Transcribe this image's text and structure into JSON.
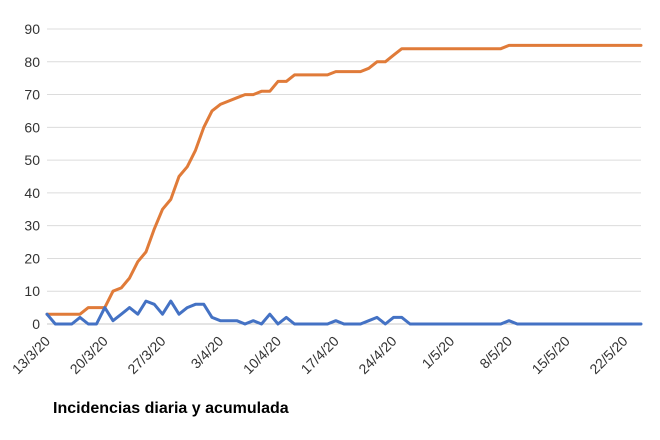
{
  "caption": "Incidencias diaria y acumulada",
  "chart_data": {
    "type": "line",
    "title": "",
    "xlabel": "",
    "ylabel": "",
    "ylim": [
      0,
      90
    ],
    "yticks": [
      0,
      10,
      20,
      30,
      40,
      50,
      60,
      70,
      80,
      90
    ],
    "xticks": [
      "13/3/20",
      "20/3/20",
      "27/3/20",
      "3/4/20",
      "10/4/20",
      "17/4/20",
      "24/4/20",
      "1/5/20",
      "8/5/20",
      "15/5/20",
      "22/5/20"
    ],
    "grid": true,
    "legend": "none",
    "x": [
      "13/3/20",
      "14/3/20",
      "15/3/20",
      "16/3/20",
      "17/3/20",
      "18/3/20",
      "19/3/20",
      "20/3/20",
      "21/3/20",
      "22/3/20",
      "23/3/20",
      "24/3/20",
      "25/3/20",
      "26/3/20",
      "27/3/20",
      "28/3/20",
      "29/3/20",
      "30/3/20",
      "31/3/20",
      "1/4/20",
      "2/4/20",
      "3/4/20",
      "4/4/20",
      "5/4/20",
      "6/4/20",
      "7/4/20",
      "8/4/20",
      "9/4/20",
      "10/4/20",
      "11/4/20",
      "12/4/20",
      "13/4/20",
      "14/4/20",
      "15/4/20",
      "16/4/20",
      "17/4/20",
      "18/4/20",
      "19/4/20",
      "20/4/20",
      "21/4/20",
      "22/4/20",
      "23/4/20",
      "24/4/20",
      "25/4/20",
      "26/4/20",
      "27/4/20",
      "28/4/20",
      "29/4/20",
      "30/4/20",
      "1/5/20",
      "2/5/20",
      "3/5/20",
      "4/5/20",
      "5/5/20",
      "6/5/20",
      "7/5/20",
      "8/5/20",
      "9/5/20",
      "10/5/20",
      "11/5/20",
      "12/5/20",
      "13/5/20",
      "14/5/20",
      "15/5/20",
      "16/5/20",
      "17/5/20",
      "18/5/20",
      "19/5/20",
      "20/5/20",
      "21/5/20",
      "22/5/20",
      "23/5/20",
      "24/5/20"
    ],
    "series": [
      {
        "color": "#e07b39",
        "values": [
          3,
          3,
          3,
          3,
          3,
          5,
          5,
          5,
          10,
          11,
          14,
          19,
          22,
          29,
          35,
          38,
          45,
          48,
          53,
          60,
          65,
          67,
          68,
          69,
          70,
          70,
          71,
          71,
          74,
          74,
          76,
          76,
          76,
          76,
          76,
          77,
          77,
          77,
          77,
          78,
          80,
          80,
          82,
          84,
          84,
          84,
          84,
          84,
          84,
          84,
          84,
          84,
          84,
          84,
          84,
          84,
          85,
          85,
          85,
          85,
          85,
          85,
          85,
          85,
          85,
          85,
          85,
          85,
          85,
          85,
          85,
          85,
          85
        ]
      },
      {
        "color": "#4472c4",
        "values": [
          3,
          0,
          0,
          0,
          2,
          0,
          0,
          5,
          1,
          3,
          5,
          3,
          7,
          6,
          3,
          7,
          3,
          5,
          6,
          6,
          2,
          1,
          1,
          1,
          0,
          1,
          0,
          3,
          0,
          2,
          0,
          0,
          0,
          0,
          0,
          1,
          0,
          0,
          0,
          1,
          2,
          0,
          2,
          2,
          0,
          0,
          0,
          0,
          0,
          0,
          0,
          0,
          0,
          0,
          0,
          0,
          1,
          0,
          0,
          0,
          0,
          0,
          0,
          0,
          0,
          0,
          0,
          0,
          0,
          0,
          0,
          0,
          0
        ]
      }
    ]
  }
}
